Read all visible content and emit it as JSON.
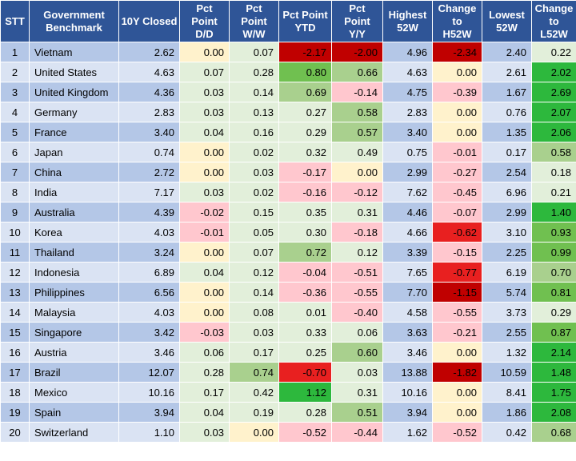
{
  "headers": [
    "STT",
    "Government\nBenchmark",
    "10Y Closed",
    "Pct\nPoint\nD/D",
    "Pct\nPoint\nW/W",
    "Pct Point\nYTD",
    "Pct\nPoint\nY/Y",
    "Highest\n52W",
    "Change\nto\nH52W",
    "Lowest\n52W",
    "Change\nto\nL52W"
  ],
  "rows": [
    {
      "stt": "1",
      "name": "Vietnam",
      "closed": "2.62",
      "dd": "0.00",
      "ww": "0.07",
      "ytd": "-2.17",
      "yy": "-2.00",
      "h52": "4.96",
      "ch": "-2.34",
      "l52": "2.40",
      "cl": "0.22"
    },
    {
      "stt": "2",
      "name": "United States",
      "closed": "4.63",
      "dd": "0.07",
      "ww": "0.28",
      "ytd": "0.80",
      "yy": "0.66",
      "h52": "4.63",
      "ch": "0.00",
      "l52": "2.61",
      "cl": "2.02"
    },
    {
      "stt": "3",
      "name": "United Kingdom",
      "closed": "4.36",
      "dd": "0.03",
      "ww": "0.14",
      "ytd": "0.69",
      "yy": "-0.14",
      "h52": "4.75",
      "ch": "-0.39",
      "l52": "1.67",
      "cl": "2.69"
    },
    {
      "stt": "4",
      "name": "Germany",
      "closed": "2.83",
      "dd": "0.03",
      "ww": "0.13",
      "ytd": "0.27",
      "yy": "0.58",
      "h52": "2.83",
      "ch": "0.00",
      "l52": "0.76",
      "cl": "2.07"
    },
    {
      "stt": "5",
      "name": "France",
      "closed": "3.40",
      "dd": "0.04",
      "ww": "0.16",
      "ytd": "0.29",
      "yy": "0.57",
      "h52": "3.40",
      "ch": "0.00",
      "l52": "1.35",
      "cl": "2.06"
    },
    {
      "stt": "6",
      "name": "Japan",
      "closed": "0.74",
      "dd": "0.00",
      "ww": "0.02",
      "ytd": "0.32",
      "yy": "0.49",
      "h52": "0.75",
      "ch": "-0.01",
      "l52": "0.17",
      "cl": "0.58"
    },
    {
      "stt": "7",
      "name": "China",
      "closed": "2.72",
      "dd": "0.00",
      "ww": "0.03",
      "ytd": "-0.17",
      "yy": "0.00",
      "h52": "2.99",
      "ch": "-0.27",
      "l52": "2.54",
      "cl": "0.18"
    },
    {
      "stt": "8",
      "name": "India",
      "closed": "7.17",
      "dd": "0.03",
      "ww": "0.02",
      "ytd": "-0.16",
      "yy": "-0.12",
      "h52": "7.62",
      "ch": "-0.45",
      "l52": "6.96",
      "cl": "0.21"
    },
    {
      "stt": "9",
      "name": "Australia",
      "closed": "4.39",
      "dd": "-0.02",
      "ww": "0.15",
      "ytd": "0.35",
      "yy": "0.31",
      "h52": "4.46",
      "ch": "-0.07",
      "l52": "2.99",
      "cl": "1.40"
    },
    {
      "stt": "10",
      "name": "Korea",
      "closed": "4.03",
      "dd": "-0.01",
      "ww": "0.05",
      "ytd": "0.30",
      "yy": "-0.18",
      "h52": "4.66",
      "ch": "-0.62",
      "l52": "3.10",
      "cl": "0.93"
    },
    {
      "stt": "11",
      "name": "Thailand",
      "closed": "3.24",
      "dd": "0.00",
      "ww": "0.07",
      "ytd": "0.72",
      "yy": "0.12",
      "h52": "3.39",
      "ch": "-0.15",
      "l52": "2.25",
      "cl": "0.99"
    },
    {
      "stt": "12",
      "name": "Indonesia",
      "closed": "6.89",
      "dd": "0.04",
      "ww": "0.12",
      "ytd": "-0.04",
      "yy": "-0.51",
      "h52": "7.65",
      "ch": "-0.77",
      "l52": "6.19",
      "cl": "0.70"
    },
    {
      "stt": "13",
      "name": "Philippines",
      "closed": "6.56",
      "dd": "0.00",
      "ww": "0.14",
      "ytd": "-0.36",
      "yy": "-0.55",
      "h52": "7.70",
      "ch": "-1.15",
      "l52": "5.74",
      "cl": "0.81"
    },
    {
      "stt": "14",
      "name": "Malaysia",
      "closed": "4.03",
      "dd": "0.00",
      "ww": "0.08",
      "ytd": "0.01",
      "yy": "-0.40",
      "h52": "4.58",
      "ch": "-0.55",
      "l52": "3.73",
      "cl": "0.29"
    },
    {
      "stt": "15",
      "name": "Singapore",
      "closed": "3.42",
      "dd": "-0.03",
      "ww": "0.03",
      "ytd": "0.33",
      "yy": "0.06",
      "h52": "3.63",
      "ch": "-0.21",
      "l52": "2.55",
      "cl": "0.87"
    },
    {
      "stt": "16",
      "name": "Austria",
      "closed": "3.46",
      "dd": "0.06",
      "ww": "0.17",
      "ytd": "0.25",
      "yy": "0.60",
      "h52": "3.46",
      "ch": "0.00",
      "l52": "1.32",
      "cl": "2.14"
    },
    {
      "stt": "17",
      "name": "Brazil",
      "closed": "12.07",
      "dd": "0.28",
      "ww": "0.74",
      "ytd": "-0.70",
      "yy": "0.03",
      "h52": "13.88",
      "ch": "-1.82",
      "l52": "10.59",
      "cl": "1.48"
    },
    {
      "stt": "18",
      "name": "Mexico",
      "closed": "10.16",
      "dd": "0.17",
      "ww": "0.42",
      "ytd": "1.12",
      "yy": "0.31",
      "h52": "10.16",
      "ch": "0.00",
      "l52": "8.41",
      "cl": "1.75"
    },
    {
      "stt": "19",
      "name": "Spain",
      "closed": "3.94",
      "dd": "0.04",
      "ww": "0.19",
      "ytd": "0.28",
      "yy": "0.51",
      "h52": "3.94",
      "ch": "0.00",
      "l52": "1.86",
      "cl": "2.08"
    },
    {
      "stt": "20",
      "name": "Switzerland",
      "closed": "1.10",
      "dd": "0.03",
      "ww": "0.00",
      "ytd": "-0.52",
      "yy": "-0.44",
      "h52": "1.62",
      "ch": "-0.52",
      "l52": "0.42",
      "cl": "0.68"
    }
  ],
  "colors": {
    "header_bg": "#2f5597",
    "header_text": "#ffffff",
    "row_odd": "#b4c7e7",
    "row_even": "#dae3f3",
    "neutral_yellow": "#fff2cc",
    "pos_light": "#e2efda",
    "pos_mid": "#a9d08e",
    "pos_strong": "#70c050",
    "pos_max": "#2db83d",
    "neg_light": "#ffc7ce",
    "neg_strong": "#e82020",
    "neg_max": "#c00000"
  }
}
